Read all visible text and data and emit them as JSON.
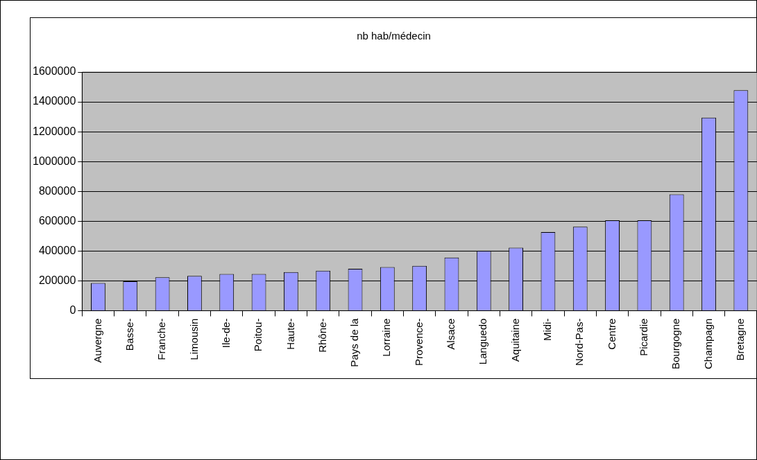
{
  "chart_data": {
    "type": "bar",
    "title": "nb hab/médecin",
    "categories": [
      "Auvergne",
      "Basse-",
      "Franche-",
      "Limousin",
      "Ile-de-",
      "Poitou-",
      "Haute-",
      "Rhône-",
      "Pays de la",
      "Lorraine",
      "Provence-",
      "Alsace",
      "Languedo",
      "Aquitaine",
      "Midi-",
      "Nord-Pas-",
      "Centre",
      "Picardie",
      "Bourgogne",
      "Champagn",
      "Bretagne"
    ],
    "values": [
      186000,
      198000,
      224000,
      234000,
      246000,
      246000,
      259000,
      269000,
      281000,
      293000,
      301000,
      357000,
      402000,
      423000,
      528000,
      563000,
      606000,
      606000,
      781000,
      1295000,
      1478000
    ],
    "color": "#9999ff",
    "ylim": [
      0,
      1600000
    ],
    "yticks": [
      0,
      200000,
      400000,
      600000,
      800000,
      1000000,
      1200000,
      1400000,
      1600000
    ],
    "grid": "y",
    "legend": false
  }
}
